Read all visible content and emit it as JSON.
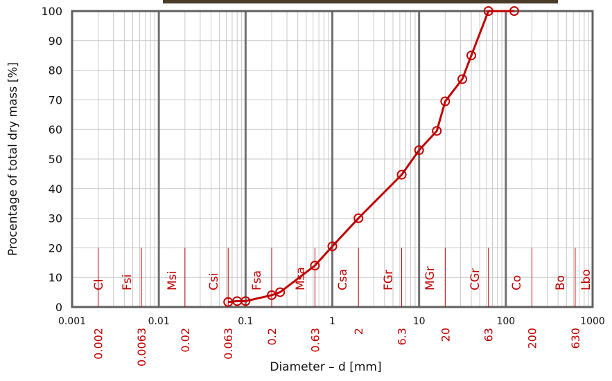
{
  "chart_data": {
    "type": "line",
    "xscale": "log",
    "grid": true,
    "x_label": "Diameter – d [mm]",
    "y_label": "Procentage of total dry mass [%]",
    "x": [
      0.063,
      0.08,
      0.1,
      0.2,
      0.25,
      0.63,
      1,
      2,
      6.3,
      10,
      16,
      20,
      31.5,
      40,
      63,
      125
    ],
    "values": [
      1.7,
      2,
      2,
      4,
      5,
      14,
      20.5,
      30,
      44.7,
      53,
      59.5,
      69.5,
      77,
      85,
      100,
      100
    ],
    "color": "#c00000",
    "xlim": [
      0.001,
      1000
    ],
    "xticks": [
      0.001,
      0.01,
      0.1,
      1,
      10,
      100,
      1000
    ],
    "ylim": [
      0,
      100
    ],
    "yticks": [
      0,
      10,
      20,
      30,
      40,
      50,
      60,
      70,
      80,
      90,
      100
    ],
    "fractions": [
      "Cl",
      "Fsi",
      "Msi",
      "Csi",
      "Fsa",
      "Msa",
      "Csa",
      "FGr",
      "MGr",
      "CGr",
      "Co",
      "Bo",
      "Lbo"
    ],
    "boundaries": [
      0.002,
      0.0063,
      0.02,
      0.063,
      0.2,
      0.63,
      2,
      6.3,
      20,
      63,
      200,
      630
    ],
    "boundary_height": 20,
    "boundary_color": "#c00000"
  }
}
